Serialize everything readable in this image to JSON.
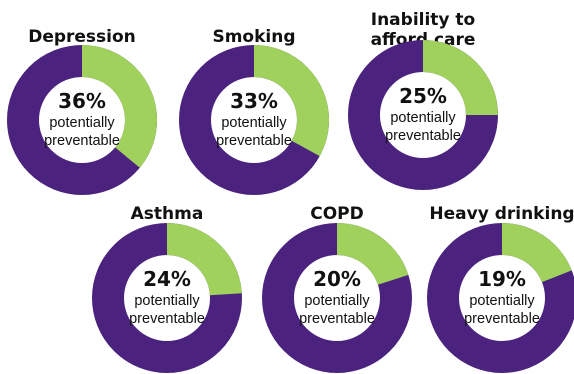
{
  "chart_data": [
    {
      "type": "pie",
      "title_lines": [
        "Depression"
      ],
      "value": 36,
      "value_text": "36%",
      "label_lines": [
        "potentially",
        "preventable"
      ],
      "colors": {
        "value": "#9fd15c",
        "rest": "#4b237e"
      }
    },
    {
      "type": "pie",
      "title_lines": [
        "Smoking"
      ],
      "value": 33,
      "value_text": "33%",
      "label_lines": [
        "potentially",
        "preventable"
      ],
      "colors": {
        "value": "#9fd15c",
        "rest": "#4b237e"
      }
    },
    {
      "type": "pie",
      "title_lines": [
        "Inability to",
        "afford care"
      ],
      "value": 25,
      "value_text": "25%",
      "label_lines": [
        "potentially",
        "preventable"
      ],
      "colors": {
        "value": "#9fd15c",
        "rest": "#4b237e"
      }
    },
    {
      "type": "pie",
      "title_lines": [
        "Asthma"
      ],
      "value": 24,
      "value_text": "24%",
      "label_lines": [
        "potentially",
        "preventable"
      ],
      "colors": {
        "value": "#9fd15c",
        "rest": "#4b237e"
      }
    },
    {
      "type": "pie",
      "title_lines": [
        "COPD"
      ],
      "value": 20,
      "value_text": "20%",
      "label_lines": [
        "potentially",
        "preventable"
      ],
      "colors": {
        "value": "#9fd15c",
        "rest": "#4b237e"
      }
    },
    {
      "type": "pie",
      "title_lines": [
        "Heavy drinking"
      ],
      "value": 19,
      "value_text": "19%",
      "label_lines": [
        "potentially",
        "preventable"
      ],
      "colors": {
        "value": "#9fd15c",
        "rest": "#4b237e"
      }
    }
  ]
}
